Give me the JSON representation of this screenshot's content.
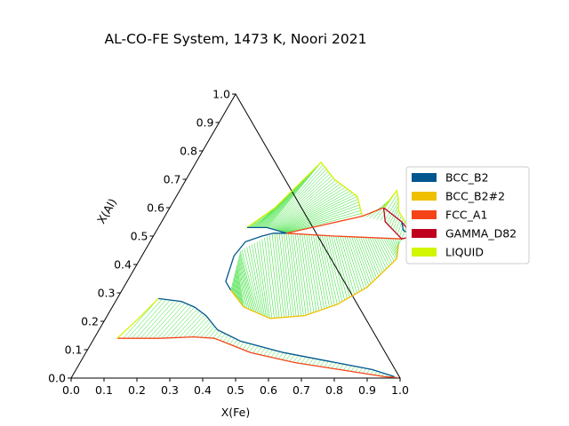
{
  "chart_data": {
    "type": "ternary",
    "title": "AL-CO-FE System, 1473 K, Noori 2021",
    "xlabel": "X(Fe)",
    "ylabel": "X(Al)",
    "xlim": [
      0,
      1
    ],
    "ylim": [
      0,
      1
    ],
    "x_ticks": [
      "0.0",
      "0.1",
      "0.2",
      "0.3",
      "0.4",
      "0.5",
      "0.6",
      "0.7",
      "0.8",
      "0.9",
      "1.0"
    ],
    "y_ticks": [
      "0.0",
      "0.1",
      "0.2",
      "0.3",
      "0.4",
      "0.5",
      "0.6",
      "0.7",
      "0.8",
      "0.9",
      "1.0"
    ],
    "legend_position": "right",
    "grid": false,
    "legend": [
      {
        "name": "BCC_B2",
        "color": "#00568f"
      },
      {
        "name": "BCC_B2#2",
        "color": "#f0c000"
      },
      {
        "name": "FCC_A1",
        "color": "#f44418"
      },
      {
        "name": "GAMMA_D82",
        "color": "#c0001f"
      },
      {
        "name": "LIQUID",
        "color": "#d2f500"
      }
    ],
    "tieline_color": "#22dd22",
    "series": [
      {
        "name": "BCC_B2",
        "color": "#00568f",
        "points": [
          [
            0.125,
            0.28
          ],
          [
            0.2,
            0.27
          ],
          [
            0.25,
            0.25
          ],
          [
            0.3,
            0.22
          ],
          [
            0.36,
            0.17
          ],
          [
            0.45,
            0.13
          ],
          [
            0.6,
            0.09
          ],
          [
            0.75,
            0.06
          ],
          [
            0.9,
            0.03
          ],
          [
            0.98,
            0.005
          ]
        ]
      },
      {
        "name": "FCC_A1",
        "color": "#f44418",
        "points": [
          [
            0.07,
            0.14
          ],
          [
            0.2,
            0.14
          ],
          [
            0.3,
            0.145
          ],
          [
            0.365,
            0.14
          ],
          [
            0.42,
            0.12
          ],
          [
            0.5,
            0.09
          ],
          [
            0.65,
            0.055
          ],
          [
            0.8,
            0.03
          ],
          [
            0.95,
            0.005
          ],
          [
            0.99,
            0.002
          ]
        ]
      },
      {
        "name": "LIQUID",
        "color": "#d2f500",
        "points": [
          [
            0.07,
            0.14
          ],
          [
            0.1,
            0.21
          ],
          [
            0.125,
            0.28
          ]
        ]
      },
      {
        "name": "LIQUID",
        "color": "#d2f500",
        "points": [
          [
            0.27,
            0.53
          ],
          [
            0.32,
            0.6
          ],
          [
            0.38,
            0.76
          ],
          [
            0.45,
            0.7
          ],
          [
            0.55,
            0.64
          ],
          [
            0.6,
            0.57
          ]
        ]
      },
      {
        "name": "BCC_B2",
        "color": "#00568f",
        "points": [
          [
            0.27,
            0.53
          ],
          [
            0.33,
            0.53
          ],
          [
            0.4,
            0.51
          ],
          [
            0.36,
            0.51
          ],
          [
            0.33,
            0.5
          ],
          [
            0.29,
            0.48
          ],
          [
            0.28,
            0.43
          ],
          [
            0.3,
            0.34
          ],
          [
            0.33,
            0.31
          ]
        ]
      },
      {
        "name": "BCC_B2#2",
        "color": "#f0c000",
        "points": [
          [
            0.33,
            0.31
          ],
          [
            0.4,
            0.25
          ],
          [
            0.5,
            0.21
          ],
          [
            0.6,
            0.22
          ],
          [
            0.68,
            0.26
          ],
          [
            0.74,
            0.32
          ],
          [
            0.78,
            0.42
          ],
          [
            0.76,
            0.47
          ]
        ]
      },
      {
        "name": "FCC_A1",
        "color": "#f44418",
        "points": [
          [
            0.4,
            0.51
          ],
          [
            0.6,
            0.57
          ],
          [
            0.65,
            0.6
          ]
        ]
      },
      {
        "name": "FCC_A1",
        "color": "#f44418",
        "points": [
          [
            0.4,
            0.51
          ],
          [
            0.55,
            0.5
          ],
          [
            0.76,
            0.49
          ],
          [
            0.79,
            0.5
          ]
        ]
      },
      {
        "name": "GAMMA_D82",
        "color": "#c0001f",
        "points": [
          [
            0.65,
            0.6
          ],
          [
            0.73,
            0.55
          ],
          [
            0.79,
            0.5
          ],
          [
            0.76,
            0.49
          ],
          [
            0.68,
            0.55
          ],
          [
            0.65,
            0.6
          ]
        ]
      },
      {
        "name": "LIQUID",
        "color": "#d2f500",
        "points": [
          [
            0.65,
            0.6
          ],
          [
            0.66,
            0.66
          ],
          [
            0.68,
            0.63
          ],
          [
            0.7,
            0.59
          ],
          [
            0.75,
            0.54
          ]
        ]
      },
      {
        "name": "BCC_B2",
        "color": "#00568f",
        "points": [
          [
            0.73,
            0.55
          ],
          [
            0.75,
            0.52
          ],
          [
            0.79,
            0.5
          ]
        ]
      }
    ]
  }
}
